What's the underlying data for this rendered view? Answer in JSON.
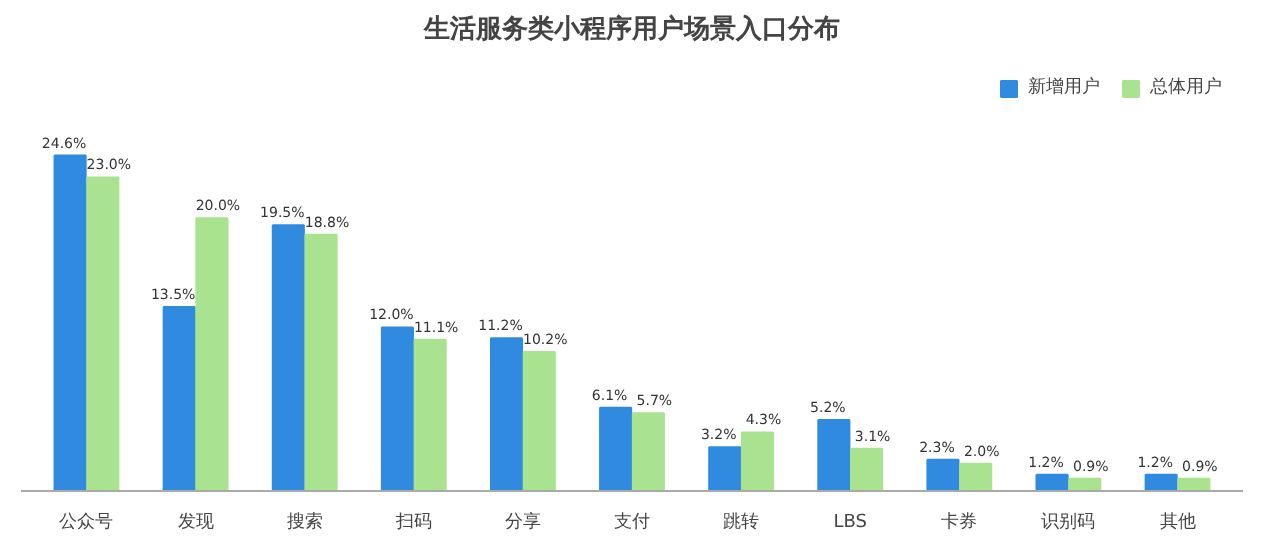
{
  "chart_data": {
    "type": "bar",
    "title": "生活服务类小程序用户场景入口分布",
    "categories": [
      "公众号",
      "发现",
      "搜索",
      "扫码",
      "分享",
      "支付",
      "跳转",
      "LBS",
      "卡券",
      "识别码",
      "其他"
    ],
    "series": [
      {
        "name": "新增用户",
        "color": "#2f8ae0",
        "values": [
          24.6,
          13.5,
          19.5,
          12.0,
          11.2,
          6.1,
          3.2,
          5.2,
          2.3,
          1.2,
          1.2
        ],
        "value_labels": [
          "24.6%",
          "13.5%",
          "19.5%",
          "12.0%",
          "11.2%",
          "6.1%",
          "3.2%",
          "5.2%",
          "2.3%",
          "1.2%",
          "1.2%"
        ]
      },
      {
        "name": "总体用户",
        "color": "#a9e38f",
        "values": [
          23.0,
          20.0,
          18.8,
          11.1,
          10.2,
          5.7,
          4.3,
          3.1,
          2.0,
          0.9,
          0.9
        ],
        "value_labels": [
          "23.0%",
          "20.0%",
          "18.8%",
          "11.1%",
          "10.2%",
          "5.7%",
          "4.3%",
          "3.1%",
          "2.0%",
          "0.9%",
          "0.9%"
        ]
      }
    ],
    "legend": "top right",
    "grid": false,
    "tick_labels": "x"
  }
}
